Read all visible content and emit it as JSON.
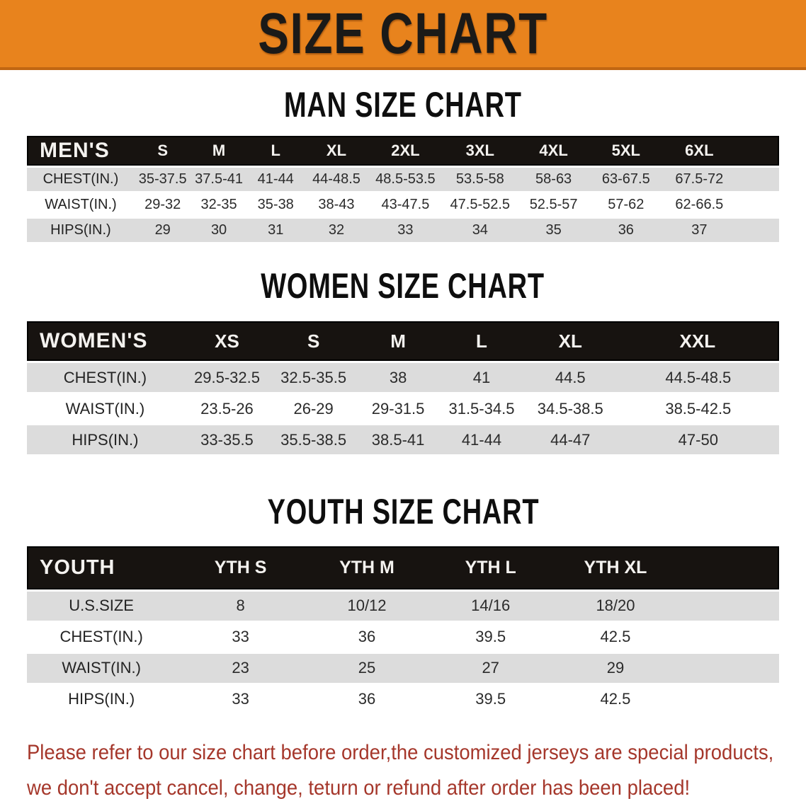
{
  "banner": {
    "title": "SIZE CHART",
    "bg_color": "#e8831d",
    "border_color": "#c06612",
    "text_color": "#1b1a18"
  },
  "sections": [
    {
      "heading": "MAN SIZE CHART",
      "table": {
        "header_label": "MEN'S",
        "columns": [
          "S",
          "M",
          "L",
          "XL",
          "2XL",
          "3XL",
          "4XL",
          "5XL",
          "6XL"
        ],
        "rows": [
          {
            "label": "CHEST(IN.)",
            "values": [
              "35-37.5",
              "37.5-41",
              "41-44",
              "44-48.5",
              "48.5-53.5",
              "53.5-58",
              "58-63",
              "63-67.5",
              "67.5-72"
            ]
          },
          {
            "label": "WAIST(IN.)",
            "values": [
              "29-32",
              "32-35",
              "35-38",
              "38-43",
              "43-47.5",
              "47.5-52.5",
              "52.5-57",
              "57-62",
              "62-66.5"
            ]
          },
          {
            "label": "HIPS(IN.)",
            "values": [
              "29",
              "30",
              "31",
              "32",
              "33",
              "34",
              "35",
              "36",
              "37"
            ]
          }
        ]
      }
    },
    {
      "heading": "WOMEN SIZE CHART",
      "table": {
        "header_label": "WOMEN'S",
        "columns": [
          "XS",
          "S",
          "M",
          "L",
          "XL",
          "XXL"
        ],
        "rows": [
          {
            "label": "CHEST(IN.)",
            "values": [
              "29.5-32.5",
              "32.5-35.5",
              "38",
              "41",
              "44.5",
              "44.5-48.5"
            ]
          },
          {
            "label": "WAIST(IN.)",
            "values": [
              "23.5-26",
              "26-29",
              "29-31.5",
              "31.5-34.5",
              "34.5-38.5",
              "38.5-42.5"
            ]
          },
          {
            "label": "HIPS(IN.)",
            "values": [
              "33-35.5",
              "35.5-38.5",
              "38.5-41",
              "41-44",
              "44-47",
              "47-50"
            ]
          }
        ]
      }
    },
    {
      "heading": "YOUTH SIZE CHART",
      "table": {
        "header_label": "YOUTH",
        "columns": [
          "YTH S",
          "YTH M",
          "YTH L",
          "YTH XL"
        ],
        "rows": [
          {
            "label": "U.S.SIZE",
            "values": [
              "8",
              "10/12",
              "14/16",
              "18/20"
            ]
          },
          {
            "label": "CHEST(IN.)",
            "values": [
              "33",
              "36",
              "39.5",
              "42.5"
            ]
          },
          {
            "label": "WAIST(IN.)",
            "values": [
              "23",
              "25",
              "27",
              "29"
            ]
          },
          {
            "label": "HIPS(IN.)",
            "values": [
              "33",
              "36",
              "39.5",
              "42.5"
            ]
          }
        ]
      }
    }
  ],
  "disclaimer": {
    "line1": "Please refer to our size chart before order,the customized jerseys are special products,",
    "line2": "we don't accept cancel, change, teturn or refund after order has been placed!",
    "color": "#a5372b"
  },
  "colors": {
    "table_header_band": "#171310",
    "shaded_row": "#dcdcdc",
    "table_text": "#2b2b2b"
  }
}
